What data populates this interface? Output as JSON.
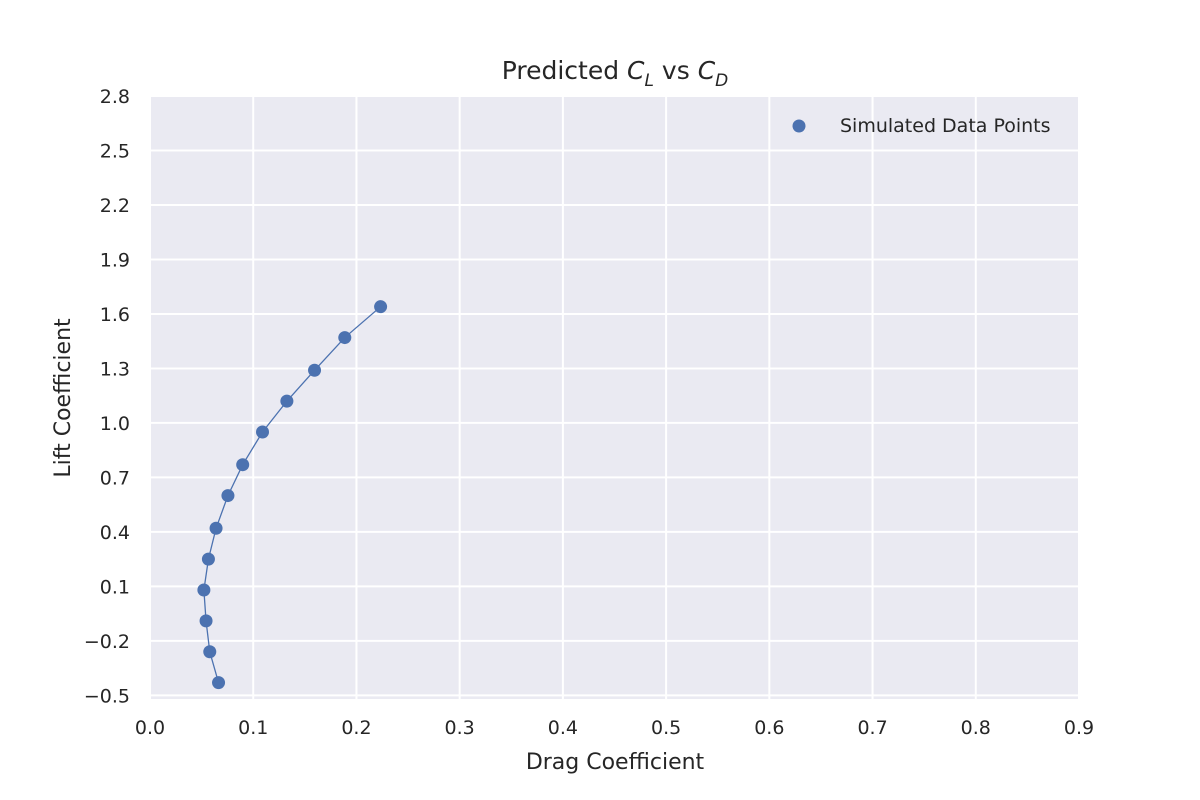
{
  "chart_data": {
    "type": "scatter",
    "title": {
      "prefix": "Predicted ",
      "var1": "C",
      "sub1": "L",
      "middle": " vs ",
      "var2": "C",
      "sub2": "D"
    },
    "xlabel": "Drag Coefficient",
    "ylabel": "Lift Coefficient",
    "xlim": [
      0.0,
      0.9
    ],
    "ylim": [
      -0.52,
      2.8
    ],
    "xticks": [
      0.0,
      0.1,
      0.2,
      0.3,
      0.4,
      0.5,
      0.6,
      0.7,
      0.8,
      0.9
    ],
    "xtick_labels": [
      "0.0",
      "0.1",
      "0.2",
      "0.3",
      "0.4",
      "0.5",
      "0.6",
      "0.7",
      "0.8",
      "0.9"
    ],
    "yticks": [
      -0.5,
      -0.2,
      0.1,
      0.4,
      0.7,
      1.0,
      1.3,
      1.6,
      1.9,
      2.2,
      2.5,
      2.8
    ],
    "ytick_labels": [
      "−0.5",
      "−0.2",
      "0.1",
      "0.4",
      "0.7",
      "1.0",
      "1.3",
      "1.6",
      "1.9",
      "2.2",
      "2.5",
      "2.8"
    ],
    "grid": true,
    "legend_position": "top-right",
    "series": [
      {
        "name": "Simulated Data Points",
        "color": "#4c72b0",
        "connected": true,
        "x": [
          0.0664,
          0.0579,
          0.0543,
          0.0522,
          0.0566,
          0.064,
          0.0755,
          0.0898,
          0.109,
          0.1326,
          0.1594,
          0.1887,
          0.2234
        ],
        "y": [
          -0.43,
          -0.26,
          -0.09,
          0.08,
          0.25,
          0.42,
          0.6,
          0.77,
          0.95,
          1.12,
          1.29,
          1.47,
          1.64
        ]
      }
    ],
    "colors": {
      "plot_background": "#eaeaf2",
      "grid": "#ffffff",
      "text": "#262626"
    }
  }
}
